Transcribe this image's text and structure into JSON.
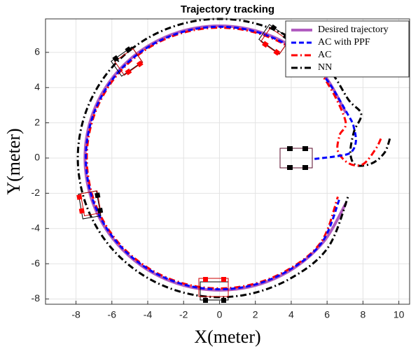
{
  "chart_data": {
    "type": "line",
    "title": "Trajectory tracking",
    "xlabel": "X(meter)",
    "ylabel": "Y(meter)",
    "xlim": [
      -9.7,
      10.6
    ],
    "ylim": [
      -8.3,
      7.9
    ],
    "xticks": [
      -8,
      -6,
      -4,
      -2,
      0,
      2,
      4,
      6,
      8,
      10
    ],
    "yticks": [
      -8,
      -6,
      -4,
      -2,
      0,
      2,
      4,
      6
    ],
    "grid": true,
    "legend": "upper right",
    "series": [
      {
        "name": "Desired trajectory",
        "color": "#b15cc0",
        "style": "solid",
        "x": [
          7.05,
          5.75,
          3.75,
          1.3,
          -1.3,
          -3.75,
          -5.75,
          -7.05,
          -7.5,
          -7.05,
          -5.75,
          -3.75,
          -1.3,
          1.3,
          3.75,
          5.75,
          7.05
        ],
        "values": [
          2.57,
          4.82,
          6.5,
          7.39,
          7.39,
          6.5,
          4.82,
          2.57,
          0,
          -2.57,
          -4.82,
          -6.5,
          -7.39,
          -7.39,
          -6.5,
          -4.82,
          -2.57
        ]
      },
      {
        "name": "AC with PPF",
        "color": "#0000ff",
        "style": "dashed",
        "x": [
          5.3,
          6.5,
          7.3,
          7.6,
          7.5,
          7.2,
          5.71,
          3.73,
          1.29,
          -1.29,
          -3.73,
          -5.71,
          -7.0,
          -7.45,
          -7.0,
          -5.71,
          -3.73,
          -1.29,
          1.29,
          3.73,
          5.71,
          6.7
        ],
        "values": [
          -0.05,
          0.1,
          0.3,
          0.9,
          1.7,
          2.4,
          4.79,
          6.45,
          7.34,
          7.34,
          6.45,
          4.79,
          2.55,
          0,
          -2.55,
          -4.79,
          -6.45,
          -7.34,
          -7.34,
          -6.45,
          -4.79,
          -2.3
        ]
      },
      {
        "name": "AC",
        "color": "#ff0000",
        "style": "dashdot",
        "x": [
          9.0,
          8.7,
          8.0,
          7.2,
          6.6,
          6.7,
          7.0,
          5.67,
          3.7,
          1.28,
          -1.28,
          -3.7,
          -5.67,
          -6.95,
          -7.4,
          -6.95,
          -5.67,
          -3.7,
          -1.28,
          1.28,
          3.7,
          5.67,
          6.6
        ],
        "values": [
          1.1,
          0.5,
          -0.35,
          -0.3,
          0.4,
          1.3,
          2.2,
          4.76,
          6.41,
          7.29,
          7.29,
          6.41,
          4.76,
          2.53,
          0,
          -2.53,
          -4.76,
          -6.41,
          -7.29,
          -7.29,
          -6.41,
          -4.76,
          -2.2
        ]
      },
      {
        "name": "NN",
        "color": "#000000",
        "style": "dashdot",
        "x": [
          9.5,
          9.2,
          8.5,
          7.6,
          7.3,
          7.5,
          7.9,
          7.2,
          6.05,
          3.95,
          1.37,
          -1.37,
          -3.95,
          -6.05,
          -7.42,
          -7.9,
          -7.42,
          -6.05,
          -3.95,
          -1.37,
          1.37,
          3.95,
          6.05,
          7.2
        ],
        "values": [
          1.1,
          0.3,
          -0.3,
          -0.4,
          0.3,
          1.5,
          2.5,
          3.3,
          5.08,
          6.84,
          7.78,
          7.78,
          6.84,
          5.08,
          2.7,
          0,
          -2.7,
          -5.08,
          -6.84,
          -7.78,
          -7.78,
          -6.84,
          -5.08,
          -2.1
        ]
      }
    ]
  }
}
